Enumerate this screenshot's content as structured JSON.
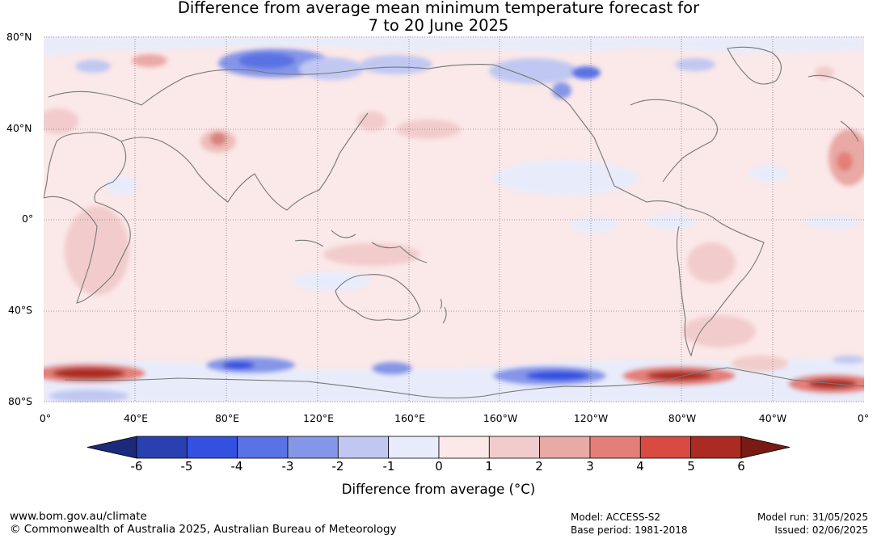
{
  "title": {
    "line1": "Difference from average mean minimum temperature forecast for",
    "line2": "7 to 20 June 2025"
  },
  "latitude_labels": [
    "80°N",
    "40°N",
    "0°",
    "40°S",
    "80°S"
  ],
  "longitude_labels": [
    "0°",
    "40°E",
    "80°E",
    "120°E",
    "160°E",
    "160°W",
    "120°W",
    "80°W",
    "40°W",
    "0°"
  ],
  "colorbar": {
    "label": "Difference from average (°C)",
    "ticks": [
      "-6",
      "-5",
      "-4",
      "-3",
      "-2",
      "-1",
      "0",
      "1",
      "2",
      "3",
      "4",
      "5",
      "6"
    ],
    "colors": [
      "#1b2a7a",
      "#2a3fb0",
      "#3350e0",
      "#5a72e4",
      "#8596e8",
      "#c0c8f2",
      "#e8ecfa",
      "#fbe8e8",
      "#f2cccc",
      "#e9a9a5",
      "#e37f78",
      "#d94a40",
      "#ab2b22",
      "#7a1a14"
    ]
  },
  "footer": {
    "website": "www.bom.gov.au/climate",
    "copyright": "© Commonwealth of Australia 2025, Australian Bureau of Meteorology",
    "model": "Model: ACCESS-S2",
    "base_period": "Base period: 1981-2018",
    "model_run": "Model run: 31/05/2025",
    "issued": "Issued: 02/06/2025"
  }
}
